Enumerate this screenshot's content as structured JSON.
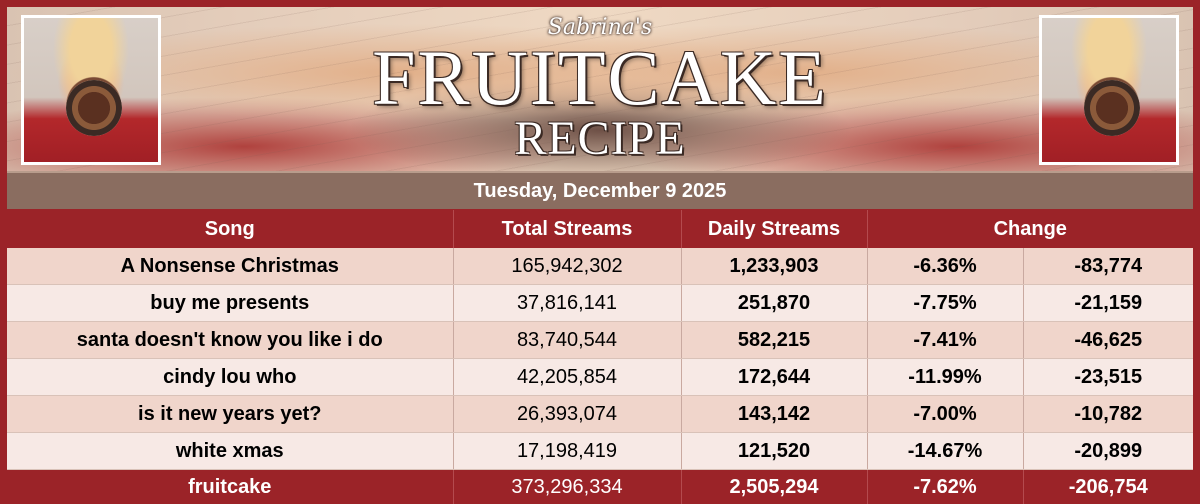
{
  "header": {
    "subtitle": "Sabrina's",
    "title_line1": "FRUITCAKE",
    "title_line2": "RECIPE"
  },
  "date": "Tuesday, December 9 2025",
  "columns": [
    "Song",
    "Total Streams",
    "Daily Streams",
    "Change"
  ],
  "rows": [
    {
      "song": "A Nonsense Christmas",
      "total": "165,942,302",
      "daily": "1,233,903",
      "pct": "-6.36%",
      "delta": "-83,774"
    },
    {
      "song": "buy me presents",
      "total": "37,816,141",
      "daily": "251,870",
      "pct": "-7.75%",
      "delta": "-21,159"
    },
    {
      "song": "santa doesn't know you like i do",
      "total": "83,740,544",
      "daily": "582,215",
      "pct": "-7.41%",
      "delta": "-46,625"
    },
    {
      "song": "cindy lou who",
      "total": "42,205,854",
      "daily": "172,644",
      "pct": "-11.99%",
      "delta": "-23,515"
    },
    {
      "song": "is it new years yet?",
      "total": "26,393,074",
      "daily": "143,142",
      "pct": "-7.00%",
      "delta": "-10,782"
    },
    {
      "song": "white xmas",
      "total": "17,198,419",
      "daily": "121,520",
      "pct": "-14.67%",
      "delta": "-20,899"
    }
  ],
  "total_row": {
    "song": "fruitcake",
    "total": "373,296,334",
    "daily": "2,505,294",
    "pct": "-7.62%",
    "delta": "-206,754"
  },
  "colors": {
    "accent": "#9b2328",
    "negative": "#c0121a",
    "datebar": "#8a6d60"
  }
}
